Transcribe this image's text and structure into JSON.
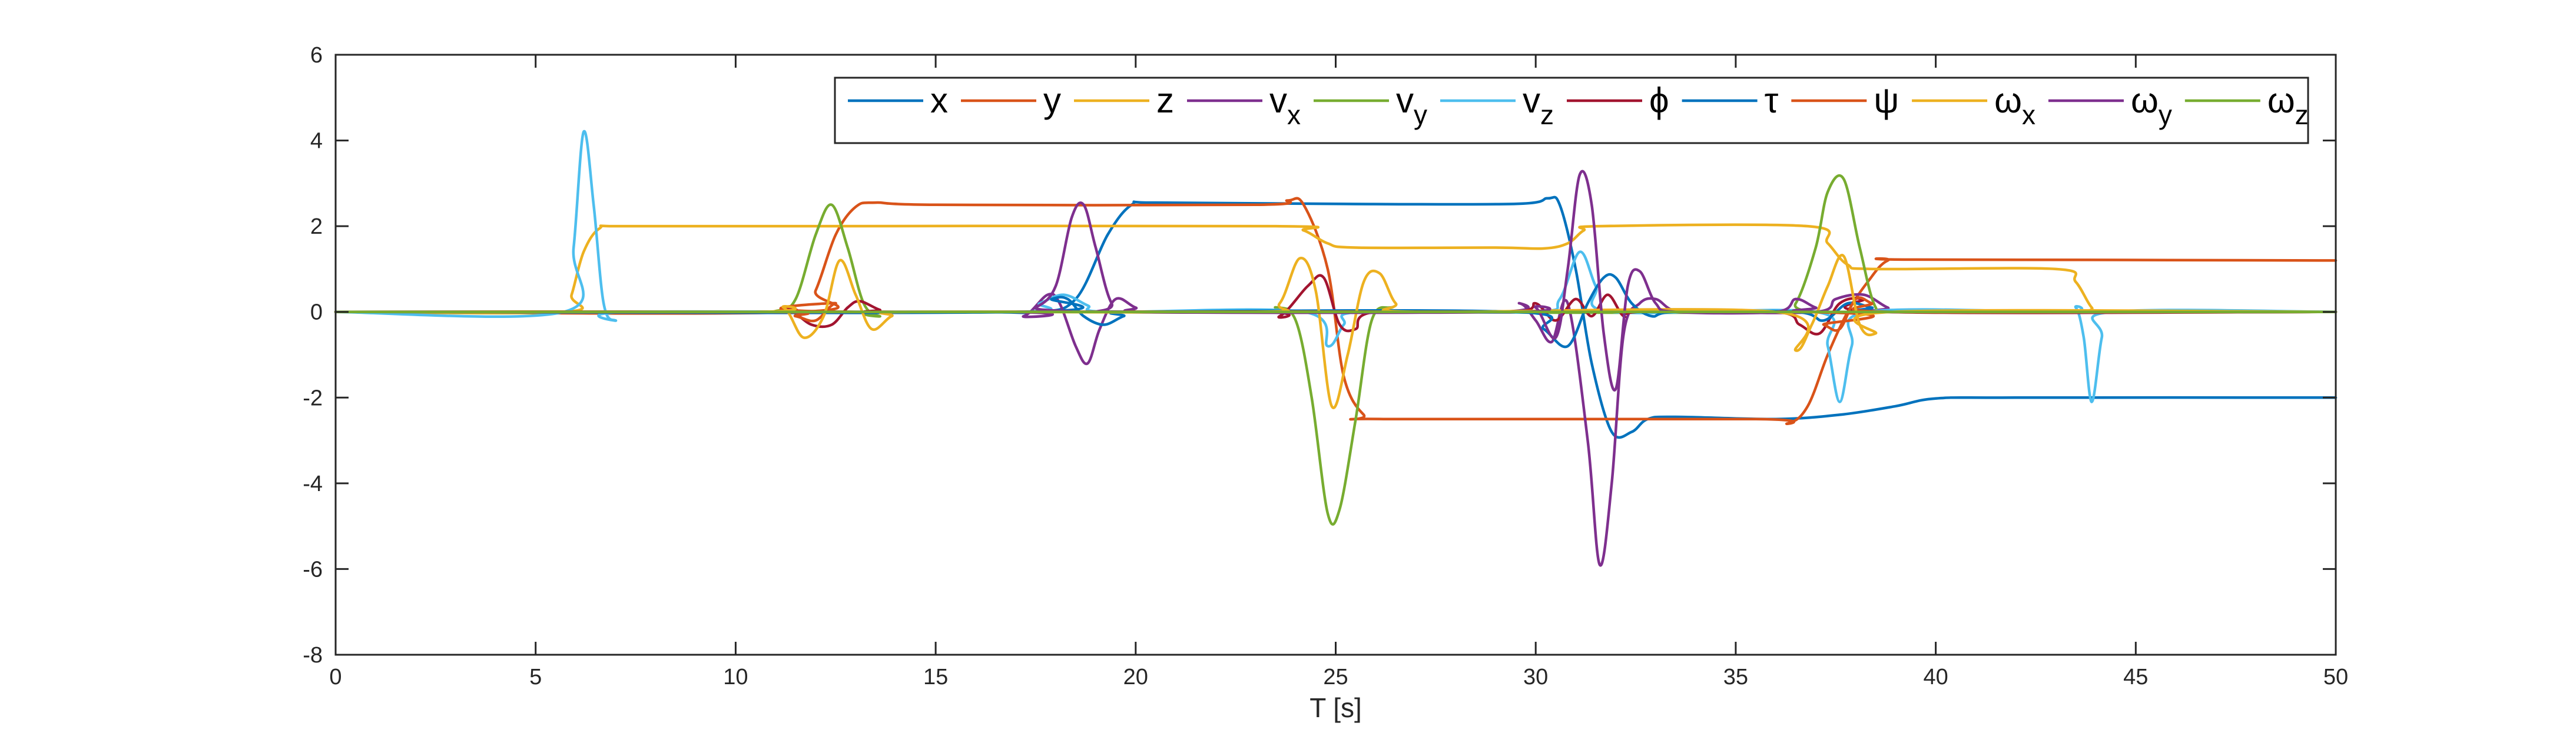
{
  "chart_data": {
    "type": "line",
    "xlabel": "T [s]",
    "ylabel": "",
    "xlim": [
      0,
      50
    ],
    "ylim": [
      -8,
      6
    ],
    "xticks": [
      0,
      5,
      10,
      15,
      20,
      25,
      30,
      35,
      40,
      45,
      50
    ],
    "yticks": [
      -8,
      -6,
      -4,
      -2,
      0,
      2,
      4,
      6
    ],
    "grid": false,
    "legend_position": "top-right",
    "series": [
      {
        "name": "x",
        "label_main": "x",
        "label_sub": "",
        "color": "#0072BD",
        "points": [
          [
            0,
            0
          ],
          [
            15,
            0
          ],
          [
            17.5,
            0
          ],
          [
            18.5,
            0.3
          ],
          [
            19.3,
            1.8
          ],
          [
            19.9,
            2.5
          ],
          [
            20.5,
            2.55
          ],
          [
            25,
            2.52
          ],
          [
            29.5,
            2.52
          ],
          [
            30.3,
            2.65
          ],
          [
            30.6,
            2.5
          ],
          [
            31.0,
            1.0
          ],
          [
            31.4,
            -1.2
          ],
          [
            31.9,
            -2.8
          ],
          [
            32.4,
            -2.8
          ],
          [
            32.8,
            -2.5
          ],
          [
            33.5,
            -2.45
          ],
          [
            36,
            -2.5
          ],
          [
            37.6,
            -2.4
          ],
          [
            39.0,
            -2.2
          ],
          [
            40.0,
            -2.02
          ],
          [
            42,
            -2.0
          ],
          [
            50,
            -2.0
          ]
        ]
      },
      {
        "name": "y",
        "label_main": "y",
        "label_sub": "",
        "color": "#D95319",
        "points": [
          [
            0,
            0
          ],
          [
            11.6,
            0
          ],
          [
            12.0,
            0.5
          ],
          [
            12.5,
            1.8
          ],
          [
            13.0,
            2.45
          ],
          [
            13.5,
            2.55
          ],
          [
            15,
            2.5
          ],
          [
            23,
            2.5
          ],
          [
            23.8,
            2.6
          ],
          [
            24.2,
            2.5
          ],
          [
            24.8,
            1.0
          ],
          [
            25.2,
            -1.5
          ],
          [
            25.7,
            -2.4
          ],
          [
            26.2,
            -2.5
          ],
          [
            35.5,
            -2.5
          ],
          [
            36.3,
            -2.6
          ],
          [
            36.8,
            -2.2
          ],
          [
            37.3,
            -1.0
          ],
          [
            37.8,
            0.0
          ],
          [
            38.3,
            0.7
          ],
          [
            38.8,
            1.2
          ],
          [
            39.5,
            1.22
          ],
          [
            50,
            1.2
          ]
        ]
      },
      {
        "name": "z",
        "label_main": "z",
        "label_sub": "",
        "color": "#EDB120",
        "points": [
          [
            0,
            0
          ],
          [
            5.7,
            0
          ],
          [
            5.9,
            0.4
          ],
          [
            6.2,
            1.4
          ],
          [
            6.6,
            1.95
          ],
          [
            7.2,
            2.0
          ],
          [
            12,
            2.0
          ],
          [
            23.5,
            2.0
          ],
          [
            24.2,
            1.9
          ],
          [
            24.8,
            1.6
          ],
          [
            25.5,
            1.5
          ],
          [
            29,
            1.5
          ],
          [
            30.2,
            1.48
          ],
          [
            30.8,
            1.6
          ],
          [
            31.2,
            1.9
          ],
          [
            31.6,
            2.0
          ],
          [
            36.8,
            2.0
          ],
          [
            37.3,
            1.6
          ],
          [
            37.8,
            1.1
          ],
          [
            38.5,
            1.0
          ],
          [
            43,
            1.0
          ],
          [
            43.5,
            0.7
          ],
          [
            43.9,
            0.1
          ],
          [
            44.2,
            0
          ],
          [
            50,
            0
          ]
        ]
      },
      {
        "name": "vx",
        "label_main": "v",
        "label_sub": "x",
        "color": "#7E2F8E",
        "points": [
          [
            0,
            0
          ],
          [
            16.5,
            0
          ],
          [
            17.2,
            -0.1
          ],
          [
            17.8,
            0.4
          ],
          [
            18.1,
            0.2
          ],
          [
            18.5,
            -0.8
          ],
          [
            18.8,
            -1.2
          ],
          [
            19.1,
            -0.4
          ],
          [
            19.5,
            0.3
          ],
          [
            20,
            0.1
          ],
          [
            20.5,
            0
          ],
          [
            29,
            0
          ],
          [
            29.6,
            0.2
          ],
          [
            30.0,
            -0.2
          ],
          [
            30.4,
            -0.7
          ],
          [
            30.8,
            0.2
          ],
          [
            31.3,
            -3.0
          ],
          [
            31.6,
            -5.9
          ],
          [
            31.9,
            -4.0
          ],
          [
            32.2,
            -0.5
          ],
          [
            32.6,
            0.2
          ],
          [
            33.0,
            0.3
          ],
          [
            33.4,
            0.05
          ],
          [
            34,
            0
          ],
          [
            37,
            0
          ],
          [
            37.5,
            0.3
          ],
          [
            38.2,
            0.4
          ],
          [
            38.8,
            0.1
          ],
          [
            39.3,
            0
          ],
          [
            50,
            0
          ]
        ]
      },
      {
        "name": "vy",
        "label_main": "v",
        "label_sub": "y",
        "color": "#77AC30",
        "points": [
          [
            0,
            0
          ],
          [
            10,
            0
          ],
          [
            11,
            0.02
          ],
          [
            11.5,
            0.3
          ],
          [
            12.0,
            1.8
          ],
          [
            12.4,
            2.5
          ],
          [
            12.8,
            1.5
          ],
          [
            13.2,
            0.2
          ],
          [
            13.6,
            -0.1
          ],
          [
            14,
            0
          ],
          [
            23,
            0
          ],
          [
            23.5,
            0.1
          ],
          [
            24.0,
            -0.2
          ],
          [
            24.4,
            -2.0
          ],
          [
            24.8,
            -4.7
          ],
          [
            25.1,
            -4.6
          ],
          [
            25.5,
            -2.5
          ],
          [
            25.9,
            -0.2
          ],
          [
            26.4,
            0.1
          ],
          [
            27,
            0
          ],
          [
            36,
            0
          ],
          [
            36.5,
            0.2
          ],
          [
            37.0,
            1.5
          ],
          [
            37.3,
            2.8
          ],
          [
            37.7,
            3.1
          ],
          [
            38.1,
            1.5
          ],
          [
            38.5,
            0.1
          ],
          [
            39,
            0
          ],
          [
            50,
            0
          ]
        ]
      },
      {
        "name": "vz",
        "label_main": "v",
        "label_sub": "z",
        "color": "#4DBEEE",
        "points": [
          [
            0,
            0
          ],
          [
            5.7,
            0
          ],
          [
            5.95,
            1.5
          ],
          [
            6.2,
            4.2
          ],
          [
            6.45,
            2.5
          ],
          [
            6.7,
            0.2
          ],
          [
            7.0,
            -0.2
          ],
          [
            7.4,
            0
          ],
          [
            17,
            0
          ],
          [
            17.6,
            0.2
          ],
          [
            18.2,
            0.4
          ],
          [
            18.8,
            0.15
          ],
          [
            19.3,
            0
          ],
          [
            24.2,
            0
          ],
          [
            24.8,
            -0.8
          ],
          [
            25.2,
            -0.3
          ],
          [
            25.6,
            0
          ],
          [
            30,
            0
          ],
          [
            30.6,
            0.3
          ],
          [
            31.1,
            1.4
          ],
          [
            31.5,
            0.6
          ],
          [
            31.9,
            0
          ],
          [
            37,
            0
          ],
          [
            37.3,
            -0.8
          ],
          [
            37.6,
            -2.1
          ],
          [
            37.9,
            -0.8
          ],
          [
            38.3,
            0
          ],
          [
            43.2,
            0
          ],
          [
            43.5,
            0.1
          ],
          [
            43.7,
            -0.6
          ],
          [
            43.9,
            -2.1
          ],
          [
            44.15,
            -0.6
          ],
          [
            44.4,
            0
          ],
          [
            50,
            0
          ]
        ]
      },
      {
        "name": "phi",
        "label_main": "ϕ",
        "label_sub": "",
        "color": "#A2142F",
        "points": [
          [
            0,
            0
          ],
          [
            10.5,
            0
          ],
          [
            11.3,
            0.05
          ],
          [
            11.9,
            -0.3
          ],
          [
            12.4,
            -0.3
          ],
          [
            12.8,
            0.1
          ],
          [
            13.1,
            0.25
          ],
          [
            13.6,
            0.05
          ],
          [
            14,
            0
          ],
          [
            23,
            0
          ],
          [
            23.6,
            -0.1
          ],
          [
            24.3,
            0.6
          ],
          [
            24.7,
            0.8
          ],
          [
            25.1,
            -0.3
          ],
          [
            25.5,
            -0.4
          ],
          [
            26,
            0
          ],
          [
            29.5,
            0
          ],
          [
            30.0,
            0.2
          ],
          [
            30.5,
            -0.2
          ],
          [
            31.0,
            0.3
          ],
          [
            31.4,
            -0.1
          ],
          [
            31.8,
            0.4
          ],
          [
            32.2,
            -0.1
          ],
          [
            32.6,
            0
          ],
          [
            36,
            0
          ],
          [
            36.6,
            -0.3
          ],
          [
            37.1,
            -0.5
          ],
          [
            37.6,
            0.2
          ],
          [
            38.2,
            0.3
          ],
          [
            38.7,
            0
          ],
          [
            50,
            0
          ]
        ]
      },
      {
        "name": "tau",
        "label_main": "τ",
        "label_sub": "",
        "color": "#0072BD",
        "points": [
          [
            0,
            0
          ],
          [
            17.2,
            0
          ],
          [
            17.9,
            0.3
          ],
          [
            18.3,
            0.3
          ],
          [
            18.7,
            -0.1
          ],
          [
            19.2,
            -0.3
          ],
          [
            19.7,
            -0.1
          ],
          [
            20.2,
            0
          ],
          [
            29.5,
            0
          ],
          [
            30.2,
            -0.4
          ],
          [
            30.8,
            -0.8
          ],
          [
            31.3,
            0.2
          ],
          [
            31.7,
            0.8
          ],
          [
            32.0,
            0.8
          ],
          [
            32.4,
            0.2
          ],
          [
            32.9,
            -0.1
          ],
          [
            33.5,
            0
          ],
          [
            36.5,
            0
          ],
          [
            37.2,
            -0.2
          ],
          [
            37.8,
            0.2
          ],
          [
            38.4,
            0.1
          ],
          [
            39,
            0
          ],
          [
            50,
            0
          ]
        ]
      },
      {
        "name": "psi",
        "label_main": "ψ",
        "label_sub": "",
        "color": "#D95319",
        "points": [
          [
            0,
            0
          ],
          [
            10.8,
            0
          ],
          [
            11.5,
            -0.1
          ],
          [
            12.0,
            -0.2
          ],
          [
            12.5,
            0.2
          ],
          [
            13,
            0
          ],
          [
            36.5,
            0
          ],
          [
            37.2,
            -0.3
          ],
          [
            37.6,
            -0.4
          ],
          [
            38.0,
            0.3
          ],
          [
            38.4,
            0.2
          ],
          [
            38.9,
            0
          ],
          [
            50,
            0
          ]
        ]
      },
      {
        "name": "wx",
        "label_main": "ω",
        "label_sub": "x",
        "color": "#EDB120",
        "points": [
          [
            0,
            0
          ],
          [
            10.5,
            0
          ],
          [
            11.2,
            0.1
          ],
          [
            11.7,
            -0.6
          ],
          [
            12.2,
            -0.1
          ],
          [
            12.6,
            1.2
          ],
          [
            13.0,
            0.4
          ],
          [
            13.4,
            -0.4
          ],
          [
            13.9,
            -0.1
          ],
          [
            14.4,
            0
          ],
          [
            23,
            0
          ],
          [
            23.6,
            0.2
          ],
          [
            24.1,
            1.25
          ],
          [
            24.5,
            0.5
          ],
          [
            24.9,
            -2.2
          ],
          [
            25.3,
            -1.0
          ],
          [
            25.7,
            0.7
          ],
          [
            26.1,
            0.9
          ],
          [
            26.5,
            0.2
          ],
          [
            27,
            0
          ],
          [
            36,
            0
          ],
          [
            36.5,
            -0.9
          ],
          [
            36.9,
            -0.3
          ],
          [
            37.3,
            0.6
          ],
          [
            37.7,
            1.3
          ],
          [
            38.1,
            -0.3
          ],
          [
            38.5,
            -0.5
          ],
          [
            38.9,
            0
          ],
          [
            50,
            0
          ]
        ]
      },
      {
        "name": "wy",
        "label_main": "ω",
        "label_sub": "y",
        "color": "#7E2F8E",
        "points": [
          [
            0,
            0
          ],
          [
            17,
            0
          ],
          [
            17.5,
            0.1
          ],
          [
            18.0,
            0.6
          ],
          [
            18.4,
            2.2
          ],
          [
            18.7,
            2.5
          ],
          [
            19.0,
            1.5
          ],
          [
            19.4,
            0.2
          ],
          [
            19.9,
            0
          ],
          [
            29.5,
            0
          ],
          [
            30.0,
            0.1
          ],
          [
            30.5,
            -0.6
          ],
          [
            30.8,
            1.0
          ],
          [
            31.1,
            3.2
          ],
          [
            31.4,
            2.5
          ],
          [
            31.7,
            -0.5
          ],
          [
            32.0,
            -1.8
          ],
          [
            32.3,
            0.6
          ],
          [
            32.6,
            0.95
          ],
          [
            33.0,
            0.2
          ],
          [
            33.5,
            0
          ],
          [
            36,
            0
          ],
          [
            36.5,
            0.3
          ],
          [
            37,
            0.1
          ],
          [
            37.5,
            0
          ],
          [
            50,
            0
          ]
        ]
      },
      {
        "name": "wz",
        "label_main": "ω",
        "label_sub": "z",
        "color": "#77AC30",
        "points": [
          [
            0,
            0
          ],
          [
            50,
            0
          ]
        ]
      }
    ]
  }
}
